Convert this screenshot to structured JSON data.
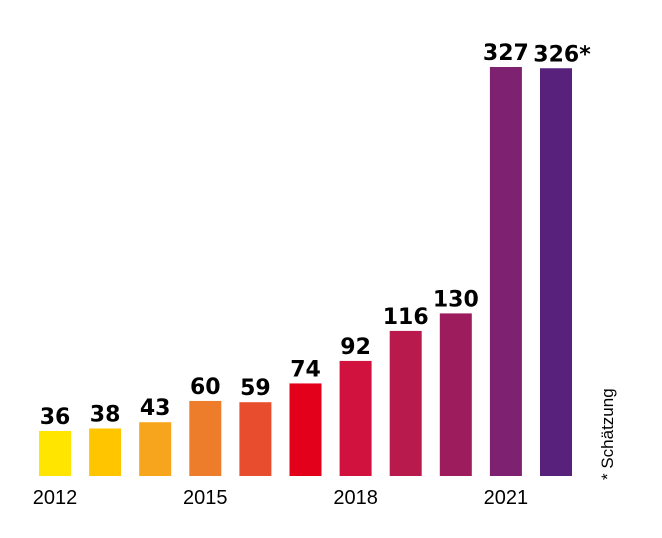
{
  "chart_data": {
    "type": "bar",
    "categories": [
      "2012",
      "2013",
      "2014",
      "2015",
      "2016",
      "2017",
      "2018",
      "2019",
      "2020",
      "2021",
      "2022"
    ],
    "values": [
      36,
      38,
      43,
      60,
      59,
      74,
      92,
      116,
      130,
      327,
      326
    ],
    "data_labels": [
      "36",
      "38",
      "43",
      "60",
      "59",
      "74",
      "92",
      "116",
      "130",
      "327",
      "326*"
    ],
    "tick_labels": [
      {
        "category": "2012",
        "label": "2012"
      },
      {
        "category": "2015",
        "label": "2015"
      },
      {
        "category": "2018",
        "label": "2018"
      },
      {
        "category": "2021",
        "label": "2021"
      }
    ],
    "colors": [
      "#FFE500",
      "#FFC600",
      "#F7A51C",
      "#EE7D2B",
      "#E84E2E",
      "#E2001A",
      "#D1123F",
      "#B81A4E",
      "#9D1C5E",
      "#7E2170",
      "#58217B"
    ],
    "ylim": [
      0,
      327
    ],
    "grid": false,
    "title": "",
    "xlabel": "",
    "ylabel": "",
    "annotation": "* Schätzung"
  }
}
